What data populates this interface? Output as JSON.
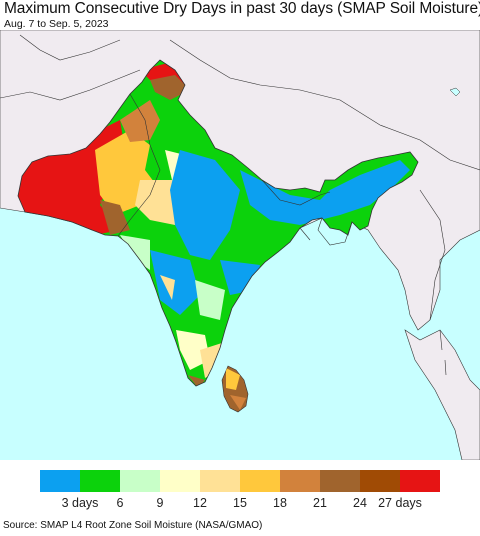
{
  "header": {
    "title": "Maximum Consecutive Dry Days in past 30 days (SMAP Soil Moisture)",
    "date_range": "Aug. 7 to Sep. 5, 2023"
  },
  "legend": {
    "colors": [
      "#0ca0f0",
      "#0cd20c",
      "#c8ffc8",
      "#ffffc8",
      "#ffe196",
      "#ffc83c",
      "#d2823c",
      "#a0642d",
      "#a04b05",
      "#e61414"
    ],
    "tick_labels": [
      "3 days",
      "6",
      "9",
      "12",
      "15",
      "18",
      "21",
      "24",
      "27 days"
    ]
  },
  "map_colors": {
    "ocean": "#c8ffff",
    "land_outside": "#f0ebf0",
    "border": "#333333"
  },
  "footer": {
    "source": "Source: SMAP L4 Root Zone Soil Moisture (NASA/GMAO)"
  }
}
